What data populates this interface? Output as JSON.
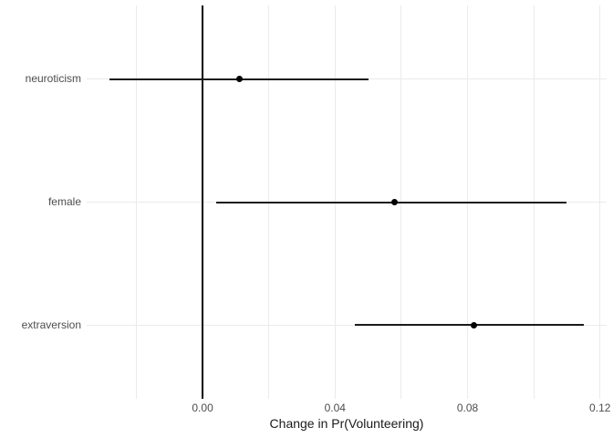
{
  "chart_data": {
    "type": "scatter",
    "subtype": "horizontal-pointrange-coefficient-plot",
    "title": "",
    "xlabel": "Change in Pr(Volunteering)",
    "ylabel": "",
    "categories": [
      "neuroticism",
      "female",
      "extraversion"
    ],
    "series": [
      {
        "name": "estimate",
        "values": [
          0.011,
          0.058,
          0.082
        ]
      },
      {
        "name": "ci_lower",
        "values": [
          -0.028,
          0.004,
          0.046
        ]
      },
      {
        "name": "ci_upper",
        "values": [
          0.05,
          0.11,
          0.115
        ]
      }
    ],
    "xlim": [
      -0.035,
      0.122
    ],
    "x_ticks": [
      0.0,
      0.04,
      0.08,
      0.12
    ],
    "x_tick_labels": [
      "0.00",
      "0.04",
      "0.08",
      "0.12"
    ],
    "x_gridlines": [
      -0.02,
      0.0,
      0.02,
      0.04,
      0.06,
      0.08,
      0.1,
      0.12
    ],
    "zero_reference_line": 0,
    "grid": true,
    "legend_position": "none",
    "colors": {
      "background": "#ffffff",
      "gridline": "#ebebeb",
      "range_line": "#1a1a1a",
      "point": "#000000",
      "zero_line": "#000000",
      "axis_text": "#4d4d4d",
      "axis_title": "#1a1a1a"
    }
  }
}
